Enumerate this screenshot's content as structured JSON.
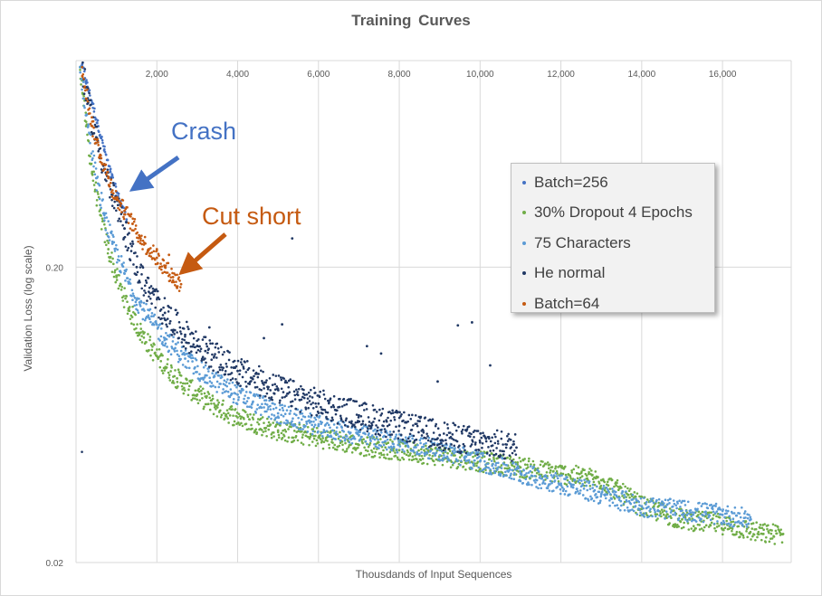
{
  "chart_data": {
    "type": "scatter",
    "title": "Training  Curves",
    "xlabel": "Thousdands of Input Sequences",
    "ylabel": "Validation Loss (log scale)",
    "x_ticks": [
      "2,000",
      "4,000",
      "6,000",
      "8,000",
      "10,000",
      "12,000",
      "14,000",
      "16,000"
    ],
    "y_ticks": [
      "0.20",
      "0.02"
    ],
    "xlim": [
      0,
      17700
    ],
    "ylim": [
      0.02,
      1.0
    ],
    "y_scale": "log",
    "grid": true,
    "legend_position": "right",
    "series": [
      {
        "name": "Batch=256",
        "color": "#4472c4",
        "points": [
          [
            150,
            0.97
          ],
          [
            250,
            0.85
          ],
          [
            400,
            0.72
          ],
          [
            550,
            0.6
          ],
          [
            700,
            0.5
          ],
          [
            850,
            0.42
          ],
          [
            1000,
            0.36
          ],
          [
            1150,
            0.32
          ],
          [
            1250,
            0.29
          ]
        ]
      },
      {
        "name": "30% Dropout 4 Epochs",
        "color": "#70ad47",
        "points": [
          [
            100,
            0.95
          ],
          [
            250,
            0.6
          ],
          [
            400,
            0.42
          ],
          [
            600,
            0.3
          ],
          [
            800,
            0.23
          ],
          [
            1000,
            0.185
          ],
          [
            1300,
            0.145
          ],
          [
            1600,
            0.12
          ],
          [
            2000,
            0.1
          ],
          [
            2500,
            0.084
          ],
          [
            3000,
            0.074
          ],
          [
            3500,
            0.067
          ],
          [
            4000,
            0.062
          ],
          [
            5000,
            0.056
          ],
          [
            6000,
            0.053
          ],
          [
            7000,
            0.05
          ],
          [
            8000,
            0.048
          ],
          [
            9000,
            0.046
          ],
          [
            10000,
            0.044
          ],
          [
            11000,
            0.042
          ],
          [
            12000,
            0.04
          ],
          [
            13000,
            0.038
          ],
          [
            14000,
            0.031
          ],
          [
            15000,
            0.028
          ],
          [
            16000,
            0.027
          ],
          [
            17000,
            0.025
          ],
          [
            17500,
            0.025
          ]
        ]
      },
      {
        "name": "75 Characters",
        "color": "#5b9bd5",
        "points": [
          [
            100,
            0.95
          ],
          [
            300,
            0.6
          ],
          [
            500,
            0.4
          ],
          [
            700,
            0.3
          ],
          [
            900,
            0.24
          ],
          [
            1200,
            0.19
          ],
          [
            1500,
            0.155
          ],
          [
            1800,
            0.135
          ],
          [
            2200,
            0.115
          ],
          [
            2700,
            0.098
          ],
          [
            3200,
            0.086
          ],
          [
            4000,
            0.074
          ],
          [
            5000,
            0.064
          ],
          [
            6000,
            0.058
          ],
          [
            7000,
            0.054
          ],
          [
            8000,
            0.051
          ],
          [
            9000,
            0.048
          ],
          [
            10000,
            0.044
          ],
          [
            11000,
            0.04
          ],
          [
            12000,
            0.037
          ],
          [
            13000,
            0.034
          ],
          [
            14000,
            0.031
          ],
          [
            15000,
            0.03
          ],
          [
            16000,
            0.029
          ],
          [
            16700,
            0.028
          ]
        ]
      },
      {
        "name": "He normal",
        "color": "#203864",
        "points": [
          [
            150,
            0.95
          ],
          [
            300,
            0.72
          ],
          [
            500,
            0.55
          ],
          [
            700,
            0.43
          ],
          [
            900,
            0.35
          ],
          [
            1200,
            0.27
          ],
          [
            1500,
            0.2
          ],
          [
            1800,
            0.165
          ],
          [
            2200,
            0.14
          ],
          [
            2700,
            0.118
          ],
          [
            3200,
            0.104
          ],
          [
            4000,
            0.089
          ],
          [
            5000,
            0.077
          ],
          [
            6000,
            0.069
          ],
          [
            7000,
            0.063
          ],
          [
            8000,
            0.058
          ],
          [
            9000,
            0.054
          ],
          [
            10000,
            0.051
          ],
          [
            10900,
            0.049
          ]
        ]
      },
      {
        "name": "Batch=64",
        "color": "#c55a11",
        "points": [
          [
            150,
            0.95
          ],
          [
            400,
            0.6
          ],
          [
            600,
            0.48
          ],
          [
            800,
            0.4
          ],
          [
            1000,
            0.34
          ],
          [
            1200,
            0.31
          ],
          [
            1400,
            0.28
          ],
          [
            1600,
            0.25
          ],
          [
            1800,
            0.23
          ],
          [
            2000,
            0.215
          ],
          [
            2200,
            0.2
          ],
          [
            2400,
            0.185
          ],
          [
            2600,
            0.175
          ]
        ]
      }
    ],
    "outliers": {
      "He normal": [
        [
          5350,
          0.25
        ],
        [
          3300,
          0.125
        ],
        [
          4650,
          0.115
        ],
        [
          5100,
          0.128
        ],
        [
          7200,
          0.108
        ],
        [
          7550,
          0.102
        ],
        [
          9450,
          0.127
        ],
        [
          9800,
          0.13
        ],
        [
          10250,
          0.093
        ],
        [
          8950,
          0.082
        ],
        [
          3000,
          0.108
        ]
      ],
      "Batch=64": [
        [
          2000,
          0.23
        ],
        [
          2300,
          0.22
        ],
        [
          2500,
          0.17
        ]
      ]
    },
    "annotations": [
      {
        "text": "Crash",
        "color": "#4472c4"
      },
      {
        "text": "Cut short",
        "color": "#c55a11"
      }
    ]
  }
}
